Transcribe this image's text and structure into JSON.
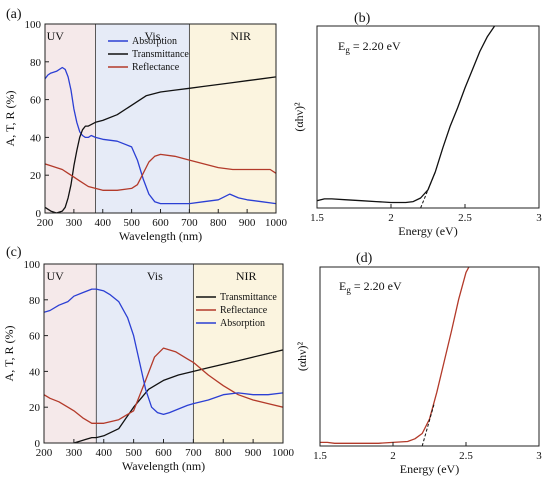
{
  "chart_data": [
    {
      "panel": "(a)",
      "type": "line",
      "xlabel": "Wavelength (nm)",
      "ylabel": "A, T, R (%)",
      "xlim": [
        200,
        1000
      ],
      "ylim": [
        0,
        100
      ],
      "xticks": [
        200,
        300,
        400,
        500,
        600,
        700,
        800,
        900,
        1000
      ],
      "yticks": [
        0,
        20,
        40,
        60,
        80,
        100
      ],
      "regions": [
        {
          "label": "UV",
          "from": 200,
          "to": 375,
          "color": "#f5e9ea"
        },
        {
          "label": "Vis",
          "from": 375,
          "to": 700,
          "color": "#e6ebf7"
        },
        {
          "label": "NIR",
          "from": 700,
          "to": 1000,
          "color": "#fbf4df"
        }
      ],
      "legend": "top-center",
      "series": [
        {
          "name": "Absorption",
          "color": "#2b3fd4",
          "x": [
            200,
            210,
            220,
            240,
            260,
            270,
            280,
            290,
            300,
            310,
            320,
            330,
            340,
            350,
            360,
            375,
            400,
            450,
            500,
            520,
            540,
            560,
            580,
            600,
            650,
            700,
            750,
            800,
            840,
            870,
            900,
            950,
            1000
          ],
          "y": [
            71,
            73,
            74,
            75,
            77,
            76,
            72,
            65,
            55,
            48,
            43,
            41,
            40,
            40,
            41,
            40,
            39,
            38,
            35,
            28,
            18,
            10,
            6,
            5,
            5,
            5,
            6,
            7,
            10,
            8,
            7,
            6,
            5
          ]
        },
        {
          "name": "Transmittance",
          "color": "#111111",
          "x": [
            200,
            220,
            240,
            260,
            270,
            280,
            290,
            300,
            310,
            320,
            330,
            340,
            350,
            375,
            400,
            450,
            500,
            550,
            600,
            650,
            700,
            750,
            800,
            850,
            900,
            950,
            1000
          ],
          "y": [
            3,
            1,
            0,
            1,
            3,
            8,
            15,
            25,
            33,
            40,
            44,
            46,
            46,
            48,
            49,
            52,
            57,
            62,
            64,
            65,
            66,
            67,
            68,
            69,
            70,
            71,
            72
          ]
        },
        {
          "name": "Reflectance",
          "color": "#b33a2a",
          "x": [
            200,
            220,
            240,
            260,
            280,
            300,
            320,
            350,
            375,
            400,
            450,
            500,
            520,
            540,
            560,
            580,
            600,
            650,
            700,
            750,
            800,
            850,
            900,
            950,
            980,
            1000
          ],
          "y": [
            26,
            25,
            24,
            23,
            21,
            19,
            17,
            14,
            13,
            12,
            12,
            13,
            15,
            21,
            27,
            30,
            31,
            30,
            28,
            26,
            24,
            23,
            23,
            23,
            23,
            21
          ]
        }
      ]
    },
    {
      "panel": "(b)",
      "type": "line",
      "xlabel": "Energy (eV)",
      "ylabel": "(αhν)²",
      "xlim": [
        1.5,
        3.0
      ],
      "ylim": [
        0,
        1
      ],
      "xticks": [
        1.5,
        2.0,
        2.5,
        3.0
      ],
      "annotation": {
        "text": "Eg = 2.20 eV",
        "main": "E",
        "sub": "g",
        "rest": " = 2.20 eV"
      },
      "series": [
        {
          "name": "",
          "color": "#111111",
          "x": [
            1.5,
            1.55,
            1.6,
            1.7,
            1.8,
            1.9,
            2.0,
            2.1,
            2.15,
            2.2,
            2.25,
            2.3,
            2.35,
            2.4,
            2.45,
            2.5,
            2.55,
            2.6,
            2.65,
            2.7
          ],
          "y": [
            0.04,
            0.05,
            0.05,
            0.045,
            0.04,
            0.035,
            0.03,
            0.03,
            0.035,
            0.055,
            0.1,
            0.2,
            0.33,
            0.45,
            0.55,
            0.66,
            0.76,
            0.86,
            0.94,
            1.0
          ]
        },
        {
          "name": "",
          "color": "#111111",
          "dashed": true,
          "x": [
            2.2,
            2.3
          ],
          "y": [
            0.0,
            0.2
          ]
        }
      ]
    },
    {
      "panel": "(c)",
      "type": "line",
      "xlabel": "Wavelength (nm)",
      "ylabel": "A, T, R (%)",
      "xlim": [
        200,
        1000
      ],
      "ylim": [
        0,
        100
      ],
      "xticks": [
        200,
        300,
        400,
        500,
        600,
        700,
        800,
        900,
        1000
      ],
      "yticks": [
        0,
        20,
        40,
        60,
        80,
        100
      ],
      "regions": [
        {
          "label": "UV",
          "from": 200,
          "to": 375,
          "color": "#f5e9ea"
        },
        {
          "label": "Vis",
          "from": 375,
          "to": 700,
          "color": "#e6ebf7"
        },
        {
          "label": "NIR",
          "from": 700,
          "to": 1000,
          "color": "#fbf4df"
        }
      ],
      "legend": "right",
      "series": [
        {
          "name": "Transmittance",
          "color": "#111111",
          "x": [
            300,
            320,
            340,
            360,
            375,
            400,
            450,
            500,
            550,
            600,
            650,
            700,
            750,
            800,
            850,
            900,
            950,
            1000
          ],
          "y": [
            0,
            1,
            2,
            3,
            3,
            4,
            8,
            20,
            30,
            35,
            38,
            40,
            42,
            44,
            46,
            48,
            50,
            52
          ]
        },
        {
          "name": "Reflectance",
          "color": "#b33a2a",
          "x": [
            200,
            220,
            250,
            280,
            300,
            330,
            360,
            375,
            400,
            450,
            500,
            540,
            570,
            600,
            640,
            680,
            700,
            750,
            800,
            850,
            900,
            950,
            1000
          ],
          "y": [
            27,
            25,
            23,
            20,
            18,
            14,
            11,
            11,
            11,
            13,
            18,
            35,
            48,
            53,
            51,
            47,
            45,
            38,
            32,
            27,
            24,
            22,
            20
          ]
        },
        {
          "name": "Absorption",
          "color": "#2b3fd4",
          "x": [
            200,
            220,
            250,
            280,
            300,
            330,
            360,
            375,
            400,
            420,
            450,
            480,
            500,
            520,
            540,
            560,
            580,
            600,
            620,
            650,
            680,
            700,
            750,
            800,
            850,
            900,
            950,
            1000
          ],
          "y": [
            73,
            74,
            77,
            79,
            82,
            84,
            86,
            86,
            85,
            83,
            79,
            70,
            60,
            45,
            30,
            20,
            17,
            16,
            17,
            19,
            21,
            22,
            24,
            27,
            28,
            27,
            27,
            28
          ]
        }
      ]
    },
    {
      "panel": "(d)",
      "type": "line",
      "xlabel": "Energy (eV)",
      "ylabel": "(αhν)²",
      "xlim": [
        1.5,
        3.0
      ],
      "ylim": [
        0,
        1
      ],
      "xticks": [
        1.5,
        2.0,
        2.5,
        3.0
      ],
      "annotation": {
        "text": "Eg = 2.20 eV",
        "main": "E",
        "sub": "g",
        "rest": " = 2.20 eV"
      },
      "series": [
        {
          "name": "",
          "color": "#b33a2a",
          "x": [
            1.5,
            1.55,
            1.6,
            1.7,
            1.8,
            1.9,
            2.0,
            2.1,
            2.15,
            2.2,
            2.25,
            2.3,
            2.35,
            2.4,
            2.45,
            2.5,
            2.52
          ],
          "y": [
            0.02,
            0.02,
            0.015,
            0.015,
            0.015,
            0.015,
            0.02,
            0.025,
            0.04,
            0.07,
            0.15,
            0.3,
            0.47,
            0.64,
            0.82,
            0.97,
            1.0
          ]
        },
        {
          "name": "",
          "color": "#111111",
          "dashed": true,
          "x": [
            2.2,
            2.28
          ],
          "y": [
            0.0,
            0.23
          ]
        }
      ]
    }
  ]
}
